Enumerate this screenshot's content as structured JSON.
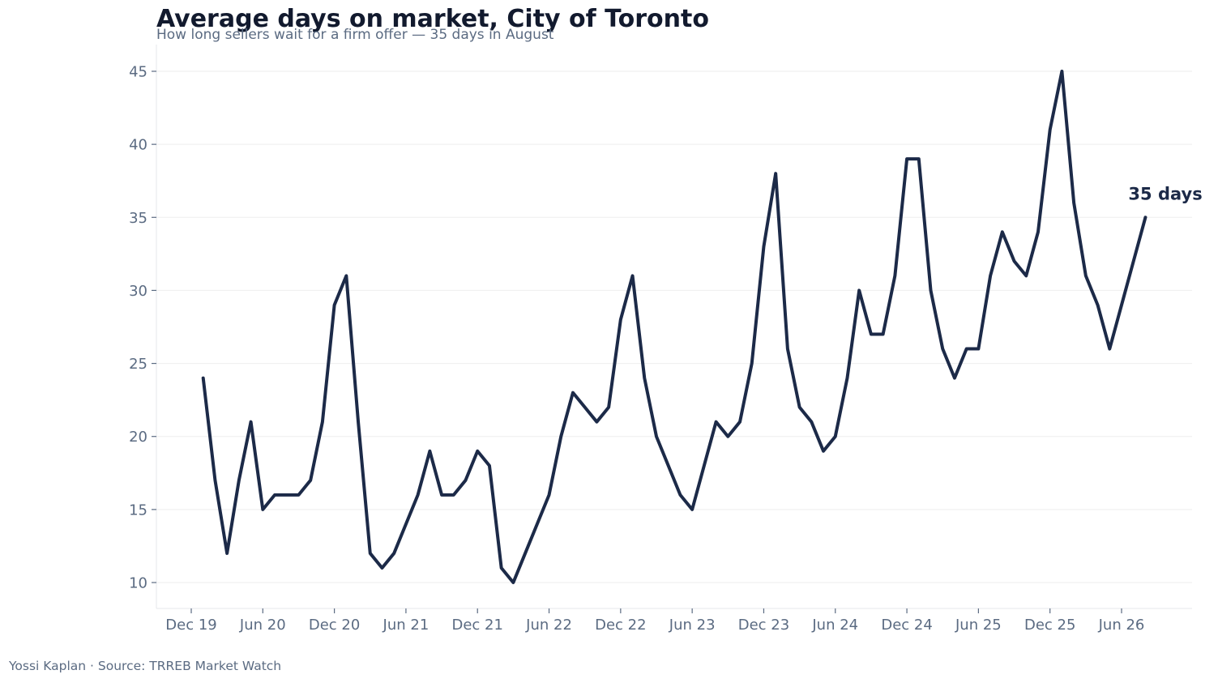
{
  "title": "Average days on market, City of Toronto",
  "subtitle": "How long sellers wait for a firm offer — 35 days in August",
  "footer": "Yossi Kaplan  ·  Source: TRREB Market Watch",
  "colors": {
    "line": "#1c2a48",
    "grid": "#eeeeee",
    "axis": "#e5e7eb",
    "text": "#5b6b82"
  },
  "chart_data": {
    "type": "line",
    "title": "Average days on market, City of Toronto",
    "subtitle": "How long sellers wait for a firm offer — 35 days in August",
    "xlabel": "",
    "ylabel": "",
    "grid": "horizontal",
    "ylim": [
      8.2,
      46.8
    ],
    "yticks": [
      10,
      15,
      20,
      25,
      30,
      35,
      40,
      45
    ],
    "xticks": [
      "Dec 19",
      "Jun 20",
      "Dec 20",
      "Jun 21",
      "Dec 21",
      "Jun 22",
      "Dec 22",
      "Jun 23",
      "Dec 23",
      "Jun 24",
      "Dec 24",
      "Jun 25",
      "Dec 25",
      "Jun 26"
    ],
    "x_start": "2020-01",
    "x_end": "2026-08",
    "series": [
      {
        "name": "",
        "values": [
          24,
          17,
          12,
          17,
          21,
          15,
          16,
          16,
          16,
          17,
          21,
          29,
          31,
          21,
          12,
          11,
          12,
          14,
          16,
          19,
          16,
          16,
          17,
          19,
          18,
          11,
          10,
          12,
          14,
          16,
          20,
          23,
          22,
          21,
          22,
          28,
          31,
          24,
          20,
          18,
          16,
          15,
          18,
          21,
          20,
          21,
          25,
          33,
          38,
          26,
          22,
          21,
          19,
          20,
          24,
          30,
          27,
          27,
          31,
          39,
          39,
          30,
          26,
          24,
          26,
          26,
          31,
          34,
          32,
          31,
          34,
          41,
          45,
          36,
          31,
          29,
          26,
          29,
          32,
          35
        ]
      }
    ],
    "annotation": "35 days"
  }
}
